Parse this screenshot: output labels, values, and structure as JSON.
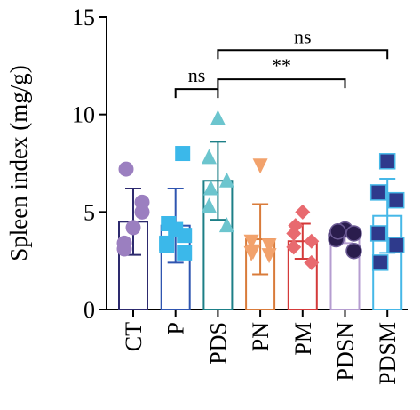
{
  "chart_data": {
    "type": "bar",
    "ylabel": "Spleen index (mg/g)",
    "ylim": [
      0,
      15
    ],
    "yticks": [
      0,
      5,
      10,
      15
    ],
    "grid": false,
    "categories": [
      "CT",
      "P",
      "PDS",
      "PN",
      "PM",
      "PDSN",
      "PDSM"
    ],
    "series": [
      {
        "category": "CT",
        "mean": 4.5,
        "sd": 1.7,
        "color": "#2d2a6e",
        "marker": "circle",
        "marker_color": "#9b7fc0",
        "points": [
          4.2,
          3.4,
          5.0,
          3.1,
          5.5,
          7.2
        ]
      },
      {
        "category": "P",
        "mean": 4.3,
        "sd": 1.9,
        "color": "#2f55b0",
        "marker": "square",
        "marker_color": "#3bb8ea",
        "points": [
          4.1,
          3.4,
          2.9,
          3.3,
          3.8,
          4.4,
          8.0
        ]
      },
      {
        "category": "PDS",
        "mean": 6.6,
        "sd": 2.0,
        "color": "#1d7f87",
        "marker": "triangle",
        "marker_color": "#6cc5ce",
        "points": [
          9.8,
          7.8,
          6.6,
          5.3,
          4.3,
          6.2
        ]
      },
      {
        "category": "PN",
        "mean": 3.6,
        "sd": 1.8,
        "color": "#d97b3a",
        "marker": "triangle-down",
        "marker_color": "#f2a26c",
        "points": [
          7.4,
          3.5,
          3.3,
          2.9,
          2.8,
          3.0
        ]
      },
      {
        "category": "PM",
        "mean": 3.5,
        "sd": 0.9,
        "color": "#d43a3a",
        "marker": "diamond",
        "marker_color": "#e86a6f",
        "points": [
          5.0,
          3.9,
          3.5,
          3.2,
          2.4,
          4.3
        ]
      },
      {
        "category": "PDSN",
        "mean": 3.8,
        "sd": 0.4,
        "color": "#b59dd0",
        "marker": "circle",
        "marker_color": "#2a1d4d",
        "points": [
          4.1,
          3.8,
          3.9,
          3.6,
          3.0,
          4.0
        ]
      },
      {
        "category": "PDSM",
        "mean": 4.8,
        "sd": 1.9,
        "color": "#46b8e8",
        "marker": "square",
        "marker_color": "#2e3a8c",
        "points": [
          7.6,
          6.0,
          5.6,
          3.9,
          3.3,
          2.4
        ]
      }
    ],
    "annotations": [
      {
        "from": "P",
        "to": "PDS",
        "label": "ns",
        "y": 11.3
      },
      {
        "from": "PDS",
        "to": "PDSM",
        "label": "ns",
        "y": 13.3
      },
      {
        "from": "PDS",
        "to": "PDSN",
        "label": "**",
        "y": 11.8
      }
    ]
  }
}
